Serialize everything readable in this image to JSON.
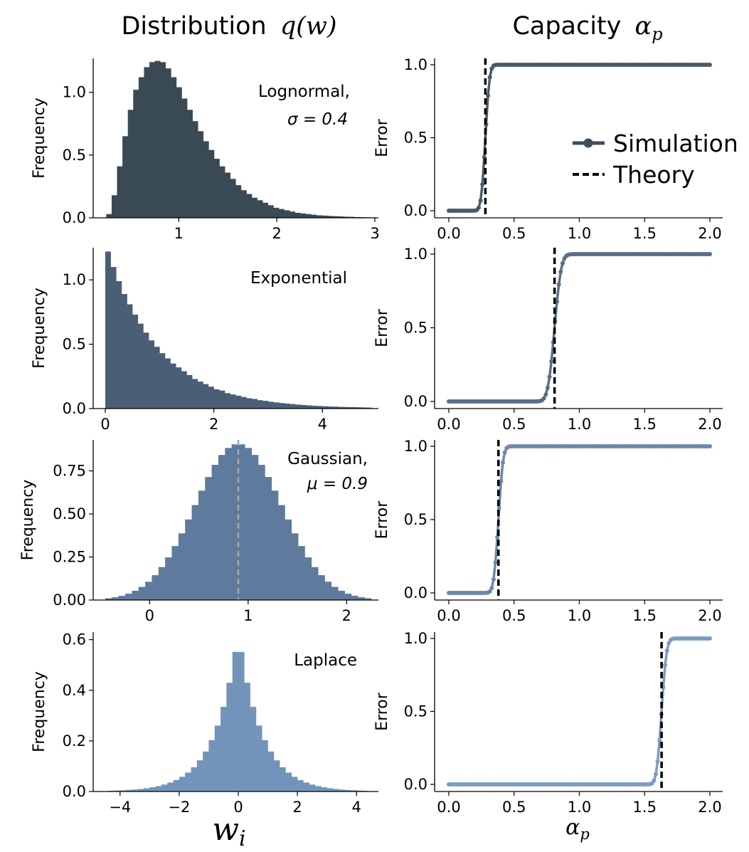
{
  "titles": {
    "left_prefix": "Distribution",
    "left_math": "q(w)",
    "right_prefix": "Capacity",
    "right_math": "α",
    "right_math_sub": "p"
  },
  "xlabels": {
    "left": "w",
    "left_sub": "i",
    "right": "α",
    "right_sub": "p"
  },
  "legend": {
    "simulation": "Simulation",
    "theory": "Theory"
  },
  "colors": {
    "lognormal": "#3a4a55",
    "exponential": "#4a5e75",
    "gaussian": "#5e7a9c",
    "laplace": "#7394ba",
    "gaussian_mean_line": "#a9a9a9"
  },
  "chart_data": [
    {
      "type": "bar",
      "panel": "lognormal-histogram",
      "ylabel": "Frequency",
      "annotation": "Lognormal,",
      "annotation_math": "σ = 0.4",
      "xlim": [
        0.25,
        3.0
      ],
      "ylim": [
        0,
        1.27
      ],
      "xticks": [
        1,
        2,
        3
      ],
      "yticks": [
        0.0,
        0.5,
        1.0
      ],
      "ytick_labels": [
        "0.0",
        "0.5",
        "1.0"
      ],
      "bin_width": 0.055,
      "bin_start": 0.26,
      "values": [
        0.03,
        0.18,
        0.41,
        0.65,
        0.86,
        1.02,
        1.12,
        1.2,
        1.24,
        1.25,
        1.24,
        1.19,
        1.12,
        1.04,
        0.95,
        0.86,
        0.77,
        0.69,
        0.61,
        0.54,
        0.47,
        0.41,
        0.36,
        0.31,
        0.26,
        0.22,
        0.19,
        0.16,
        0.14,
        0.12,
        0.1,
        0.08,
        0.07,
        0.06,
        0.05,
        0.04,
        0.035,
        0.03,
        0.025,
        0.02,
        0.018,
        0.015,
        0.013,
        0.011,
        0.009,
        0.008,
        0.006,
        0.005,
        0.004,
        0.003
      ]
    },
    {
      "type": "line",
      "panel": "lognormal-capacity",
      "ylabel": "Error",
      "xlim": [
        0.0,
        2.0
      ],
      "ylim": [
        0.0,
        1.0
      ],
      "xticks": [
        0.0,
        0.5,
        1.0,
        1.5,
        2.0
      ],
      "xtick_labels": [
        "0.0",
        "0.5",
        "1.0",
        "1.5",
        "2.0"
      ],
      "yticks": [
        0.0,
        0.5,
        1.0
      ],
      "ytick_labels": [
        "0.0",
        "0.5",
        "1.0"
      ],
      "theory": 0.28,
      "transition_width": 0.025
    },
    {
      "type": "bar",
      "panel": "exponential-histogram",
      "ylabel": "Frequency",
      "annotation": "Exponential",
      "xlim": [
        0.0,
        4.9
      ],
      "ylim": [
        0,
        1.25
      ],
      "xticks": [
        0,
        2,
        4
      ],
      "yticks": [
        0.0,
        0.5,
        1.0
      ],
      "ytick_labels": [
        "0.0",
        "0.5",
        "1.0"
      ],
      "bin_width": 0.1,
      "bin_start": 0.0,
      "values": [
        1.22,
        1.1,
        0.99,
        0.89,
        0.81,
        0.73,
        0.66,
        0.59,
        0.53,
        0.48,
        0.43,
        0.39,
        0.35,
        0.32,
        0.29,
        0.26,
        0.23,
        0.21,
        0.19,
        0.17,
        0.15,
        0.14,
        0.12,
        0.11,
        0.1,
        0.09,
        0.08,
        0.075,
        0.065,
        0.06,
        0.053,
        0.048,
        0.043,
        0.039,
        0.035,
        0.031,
        0.028,
        0.025,
        0.022,
        0.02,
        0.018,
        0.016,
        0.015,
        0.013,
        0.012,
        0.011,
        0.01,
        0.009,
        0.008
      ]
    },
    {
      "type": "line",
      "panel": "exponential-capacity",
      "ylabel": "Error",
      "xlim": [
        0.0,
        2.0
      ],
      "ylim": [
        0.0,
        1.0
      ],
      "xticks": [
        0.0,
        0.5,
        1.0,
        1.5,
        2.0
      ],
      "xtick_labels": [
        "0.0",
        "0.5",
        "1.0",
        "1.5",
        "2.0"
      ],
      "yticks": [
        0.0,
        0.5,
        1.0
      ],
      "ytick_labels": [
        "0.0",
        "0.5",
        "1.0"
      ],
      "theory": 0.81,
      "transition_width": 0.04
    },
    {
      "type": "bar",
      "panel": "gaussian-histogram",
      "ylabel": "Frequency",
      "annotation": "Gaussian,",
      "annotation_math": "μ = 0.9",
      "mean_line": 0.9,
      "xlim": [
        -0.45,
        2.25
      ],
      "ylim": [
        0,
        0.93
      ],
      "xticks": [
        0,
        1,
        2
      ],
      "yticks": [
        0.0,
        0.25,
        0.5,
        0.75
      ],
      "ytick_labels": [
        "0.00",
        "0.25",
        "0.50",
        "0.75"
      ],
      "gaussian": {
        "mu": 0.9,
        "sigma": 0.44,
        "bin_width": 0.0675,
        "bin_start": -0.45,
        "bins": 40
      }
    },
    {
      "type": "line",
      "panel": "gaussian-capacity",
      "ylabel": "Error",
      "xlim": [
        0.0,
        2.0
      ],
      "ylim": [
        0.0,
        1.0
      ],
      "xticks": [
        0.0,
        0.5,
        1.0,
        1.5,
        2.0
      ],
      "xtick_labels": [
        "0.0",
        "0.5",
        "1.0",
        "1.5",
        "2.0"
      ],
      "yticks": [
        0.0,
        0.5,
        1.0
      ],
      "ytick_labels": [
        "0.0",
        "0.5",
        "1.0"
      ],
      "theory": 0.38,
      "transition_width": 0.028
    },
    {
      "type": "bar",
      "panel": "laplace-histogram",
      "ylabel": "Frequency",
      "annotation": "Laplace",
      "xlim": [
        -4.5,
        4.5
      ],
      "ylim": [
        0,
        0.63
      ],
      "xticks": [
        -4,
        -2,
        0,
        2,
        4
      ],
      "xtick_labels": [
        "−4",
        "−2",
        "0",
        "2",
        "4"
      ],
      "yticks": [
        0.0,
        0.2,
        0.4,
        0.6
      ],
      "ytick_labels": [
        "0.0",
        "0.2",
        "0.4",
        "0.6"
      ],
      "laplace": {
        "mu": 0.0,
        "b": 0.8,
        "bin_width": 0.2,
        "bin_start": -4.4,
        "bins": 44
      }
    },
    {
      "type": "line",
      "panel": "laplace-capacity",
      "ylabel": "Error",
      "xlim": [
        0.0,
        2.0
      ],
      "ylim": [
        0.0,
        1.0
      ],
      "xticks": [
        0.0,
        0.5,
        1.0,
        1.5,
        2.0
      ],
      "xtick_labels": [
        "0.0",
        "0.5",
        "1.0",
        "1.5",
        "2.0"
      ],
      "yticks": [
        0.0,
        0.5,
        1.0
      ],
      "ytick_labels": [
        "0.0",
        "0.5",
        "1.0"
      ],
      "theory": 1.63,
      "transition_width": 0.03
    }
  ]
}
